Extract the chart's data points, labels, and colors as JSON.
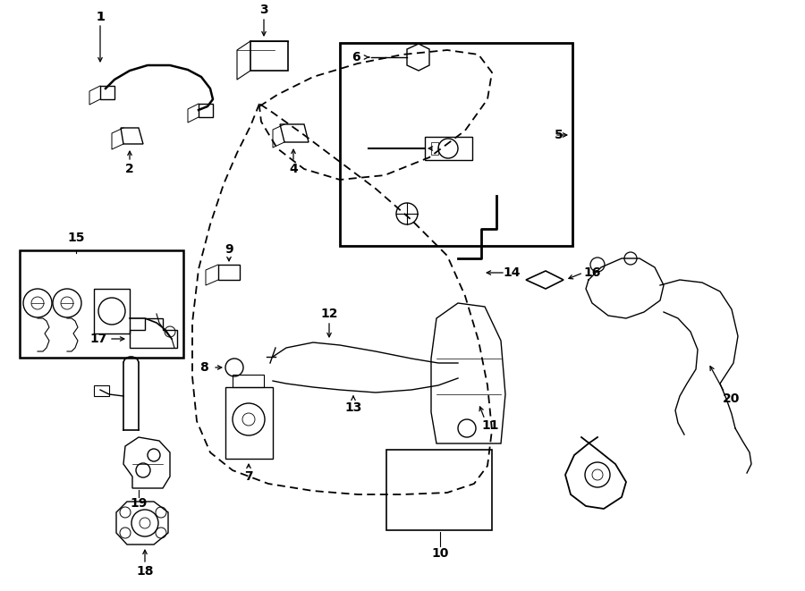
{
  "bg_color": "#ffffff",
  "figsize": [
    9.0,
    6.61
  ],
  "dpi": 100,
  "xlim": [
    0,
    9.0
  ],
  "ylim": [
    0,
    6.61
  ]
}
